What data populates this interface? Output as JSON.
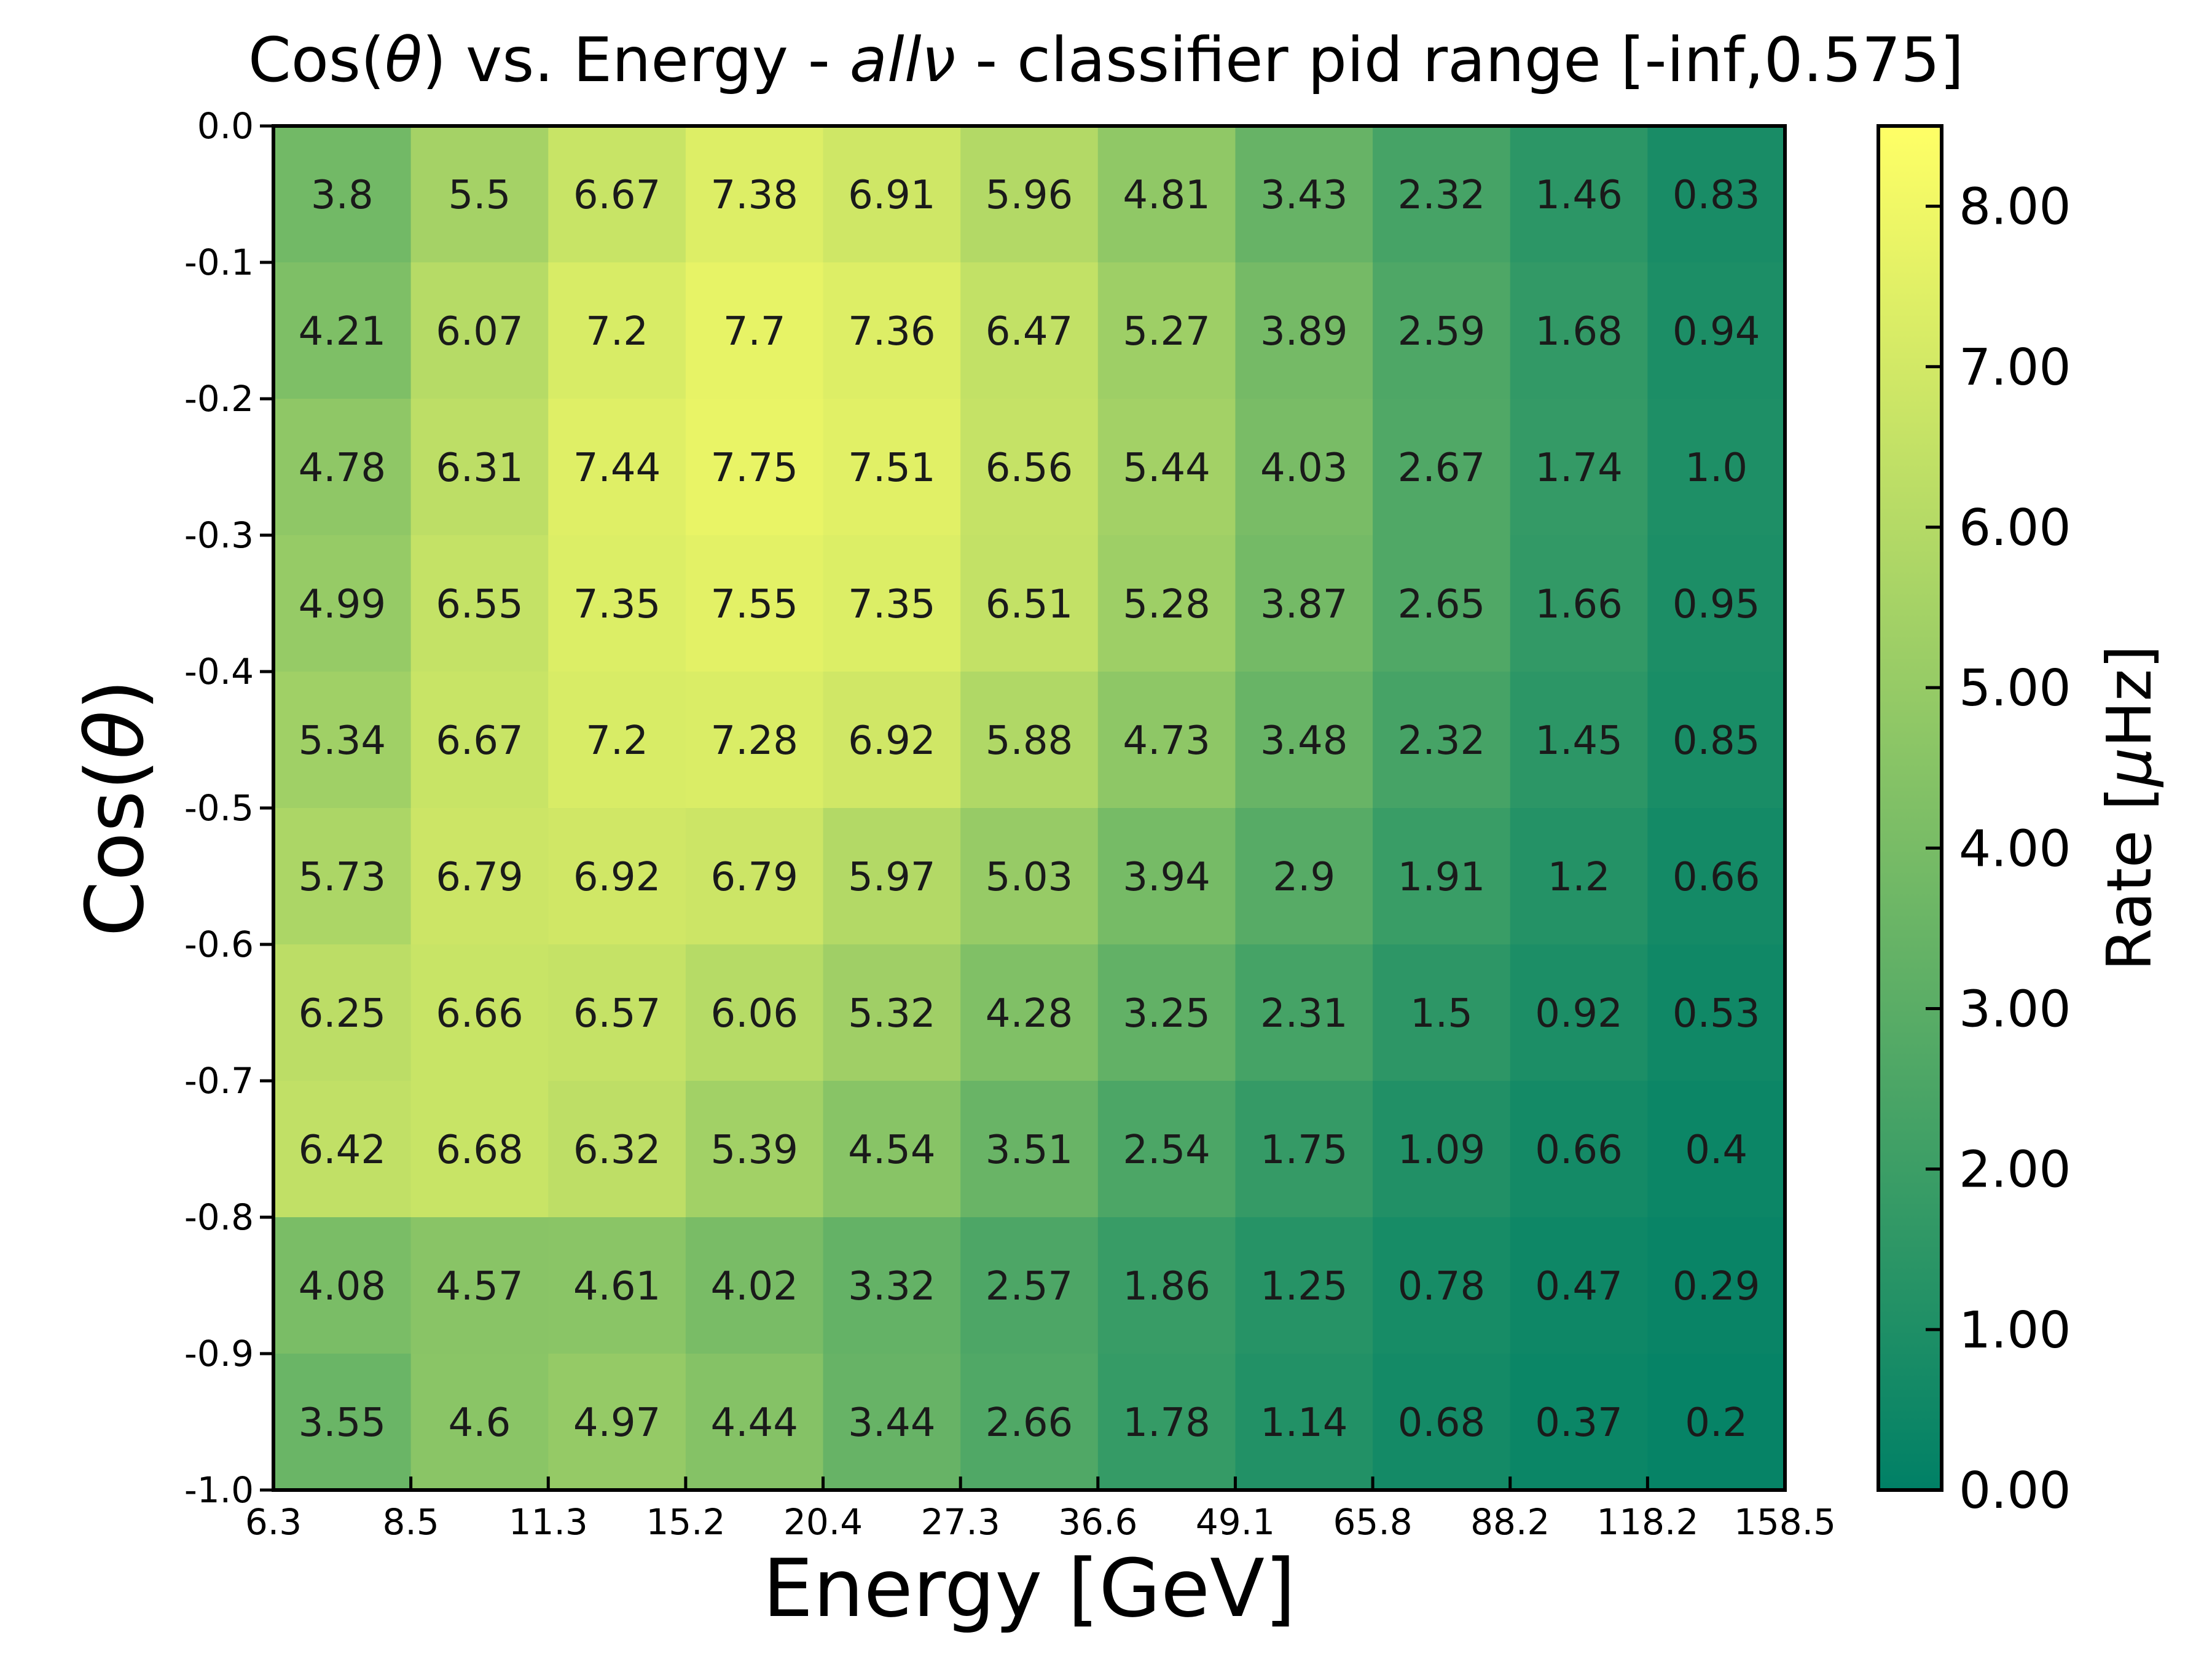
{
  "chart_data": {
    "type": "heatmap",
    "title": {
      "prefix": "Cos(",
      "theta": "θ",
      "mid": ") vs. Energy - ",
      "flavor": "allν",
      "suffix": " - classifier pid range [-inf,0.575]"
    },
    "xlabel": "Energy [GeV]",
    "ylabel": {
      "prefix": "Cos(",
      "theta": "θ",
      "suffix": ")"
    },
    "colorbar_label": {
      "prefix": "Rate [",
      "mu": "μ",
      "suffix": "Hz]"
    },
    "x_edges": [
      "6.3",
      "8.5",
      "11.3",
      "15.2",
      "20.4",
      "27.3",
      "36.6",
      "49.1",
      "65.8",
      "88.2",
      "118.2",
      "158.5"
    ],
    "y_edges": [
      "0.0",
      "-0.1",
      "-0.2",
      "-0.3",
      "-0.4",
      "-0.5",
      "-0.6",
      "-0.7",
      "-0.8",
      "-0.9",
      "-1.0"
    ],
    "values": [
      [
        "3.8",
        "5.5",
        "6.67",
        "7.38",
        "6.91",
        "5.96",
        "4.81",
        "3.43",
        "2.32",
        "1.46",
        "0.83"
      ],
      [
        "4.21",
        "6.07",
        "7.2",
        "7.7",
        "7.36",
        "6.47",
        "5.27",
        "3.89",
        "2.59",
        "1.68",
        "0.94"
      ],
      [
        "4.78",
        "6.31",
        "7.44",
        "7.75",
        "7.51",
        "6.56",
        "5.44",
        "4.03",
        "2.67",
        "1.74",
        "1.0"
      ],
      [
        "4.99",
        "6.55",
        "7.35",
        "7.55",
        "7.35",
        "6.51",
        "5.28",
        "3.87",
        "2.65",
        "1.66",
        "0.95"
      ],
      [
        "5.34",
        "6.67",
        "7.2",
        "7.28",
        "6.92",
        "5.88",
        "4.73",
        "3.48",
        "2.32",
        "1.45",
        "0.85"
      ],
      [
        "5.73",
        "6.79",
        "6.92",
        "6.79",
        "5.97",
        "5.03",
        "3.94",
        "2.9",
        "1.91",
        "1.2",
        "0.66"
      ],
      [
        "6.25",
        "6.66",
        "6.57",
        "6.06",
        "5.32",
        "4.28",
        "3.25",
        "2.31",
        "1.5",
        "0.92",
        "0.53"
      ],
      [
        "6.42",
        "6.68",
        "6.32",
        "5.39",
        "4.54",
        "3.51",
        "2.54",
        "1.75",
        "1.09",
        "0.66",
        "0.4"
      ],
      [
        "4.08",
        "4.57",
        "4.61",
        "4.02",
        "3.32",
        "2.57",
        "1.86",
        "1.25",
        "0.78",
        "0.47",
        "0.29"
      ],
      [
        "3.55",
        "4.6",
        "4.97",
        "4.44",
        "3.44",
        "2.66",
        "1.78",
        "1.14",
        "0.68",
        "0.37",
        "0.2"
      ]
    ],
    "colorbar_range": [
      0,
      8.5
    ],
    "colorbar_ticks": [
      "0.00",
      "1.00",
      "2.00",
      "3.00",
      "4.00",
      "5.00",
      "6.00",
      "7.00",
      "8.00"
    ],
    "colormap": {
      "low": "#008066",
      "high": "#ffff66"
    },
    "grid": false
  }
}
